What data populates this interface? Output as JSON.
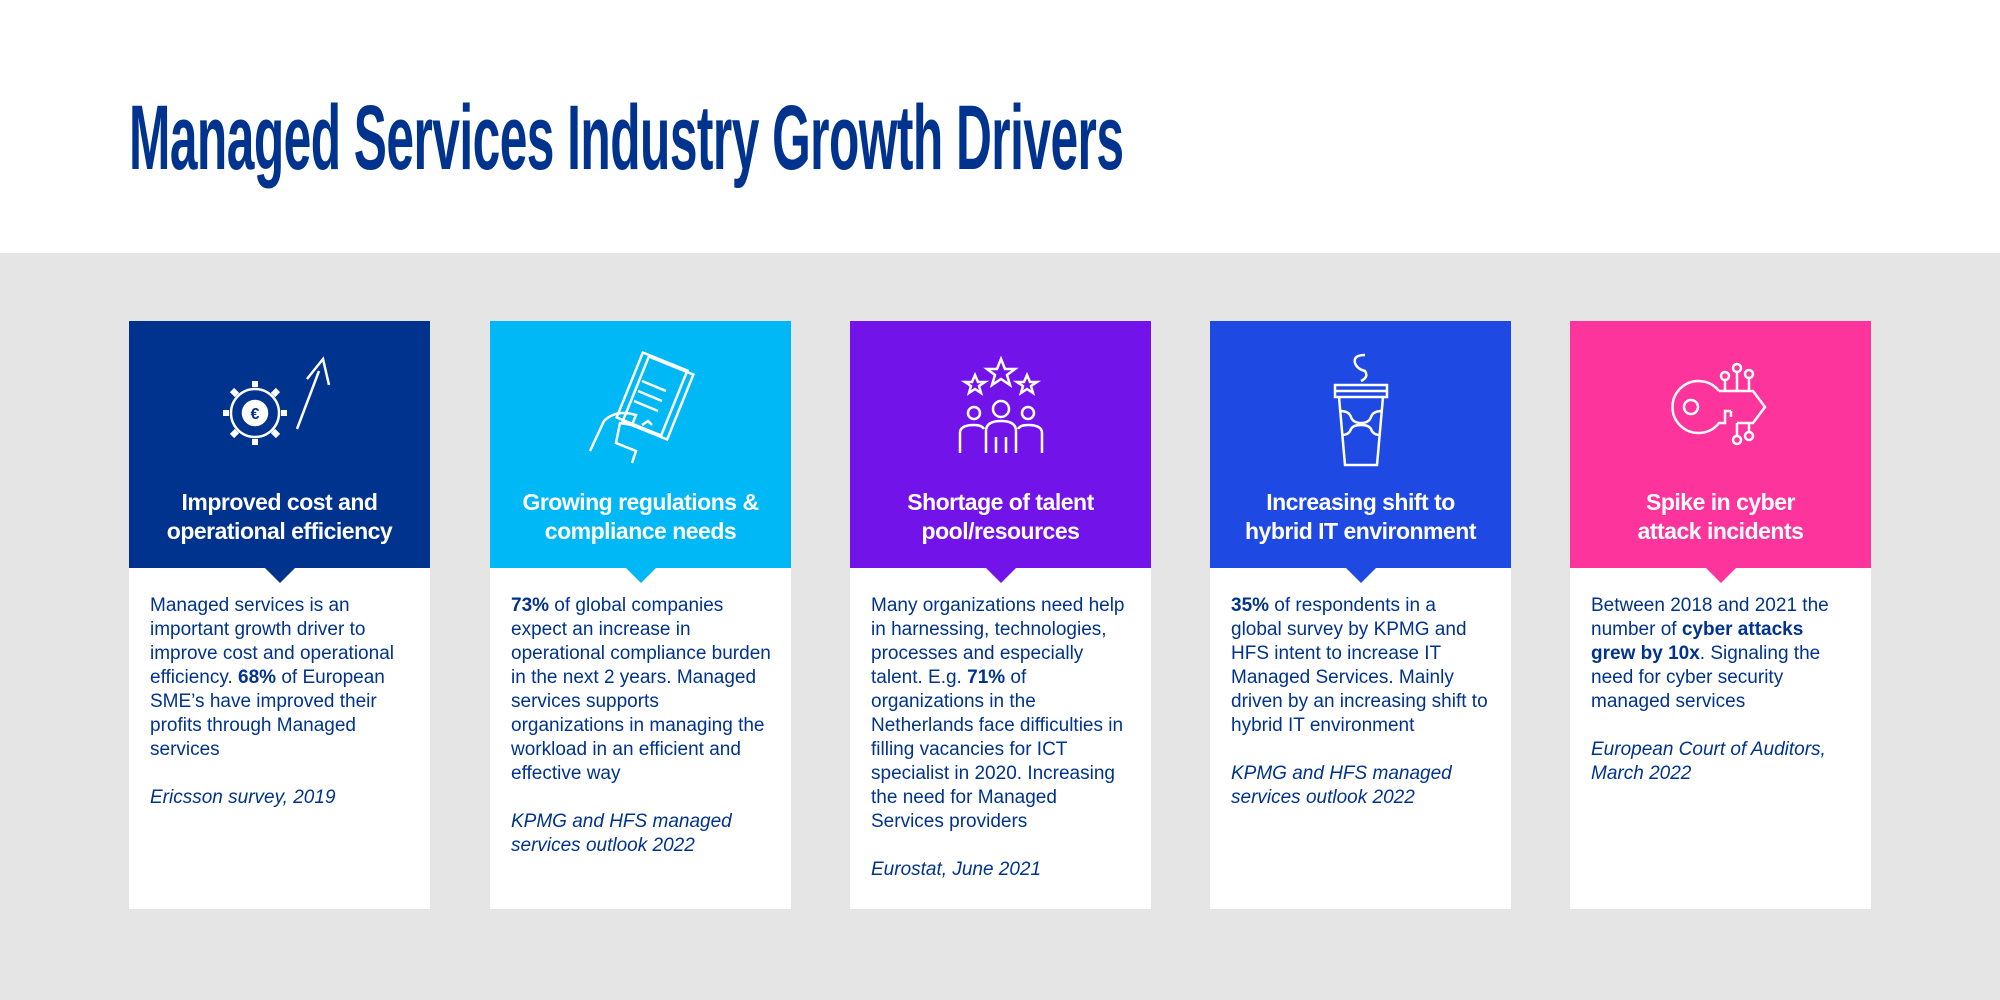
{
  "title": "Managed Services Industry Growth Drivers",
  "colors": {
    "text": "#00338D",
    "band": "#E5E5E5"
  },
  "cards": [
    {
      "icon": "gear-euro-arrow-icon",
      "color": "#00338D",
      "heading": [
        "Improved cost and",
        "operational efficiency"
      ],
      "body": [
        {
          "t": "Managed services is an important growth driver to improve cost and operational efficiency. "
        },
        {
          "t": "68%",
          "b": true
        },
        {
          "t": " of European SME’s have improved their profits through Managed services"
        }
      ],
      "source": "Ericsson survey, 2019"
    },
    {
      "icon": "hand-document-icon",
      "color": "#00B8F5",
      "heading": [
        "Growing regulations &",
        "compliance needs"
      ],
      "body": [
        {
          "t": "73%",
          "b": true
        },
        {
          "t": " of global companies expect an increase in operational compliance burden in the next 2 years. Managed services supports organizations in managing the workload in an efficient and effective way"
        }
      ],
      "source": "KPMG and HFS managed services outlook 2022"
    },
    {
      "icon": "people-stars-icon",
      "color": "#7213EA",
      "heading": [
        "Shortage of talent",
        "pool/resources"
      ],
      "body": [
        {
          "t": "Many organizations need help in harnessing, technologies, processes and especially talent. E.g. "
        },
        {
          "t": "71%",
          "b": true
        },
        {
          "t": " of organizations in the Netherlands face difficulties in filling vacancies for ICT specialist in 2020. Increasing the need for Managed Services providers"
        }
      ],
      "source": "Eurostat, June 2021"
    },
    {
      "icon": "cup-icon",
      "color": "#1E49E2",
      "heading": [
        "Increasing shift to",
        "hybrid IT environment"
      ],
      "body": [
        {
          "t": "35%",
          "b": true
        },
        {
          "t": " of respondents in a global survey by KPMG and HFS intent to increase IT Managed Services. Mainly driven by an increasing shift to hybrid IT environment"
        }
      ],
      "source": "KPMG and HFS managed services outlook 2022"
    },
    {
      "icon": "digital-key-icon",
      "color": "#FD349C",
      "heading": [
        "Spike in cyber",
        "attack incidents"
      ],
      "body": [
        {
          "t": "Between 2018 and 2021 the number of "
        },
        {
          "t": "cyber attacks grew by 10x",
          "b": true
        },
        {
          "t": ". Signaling the need for cyber security managed services"
        }
      ],
      "source": "European Court of Auditors, March 2022"
    }
  ]
}
